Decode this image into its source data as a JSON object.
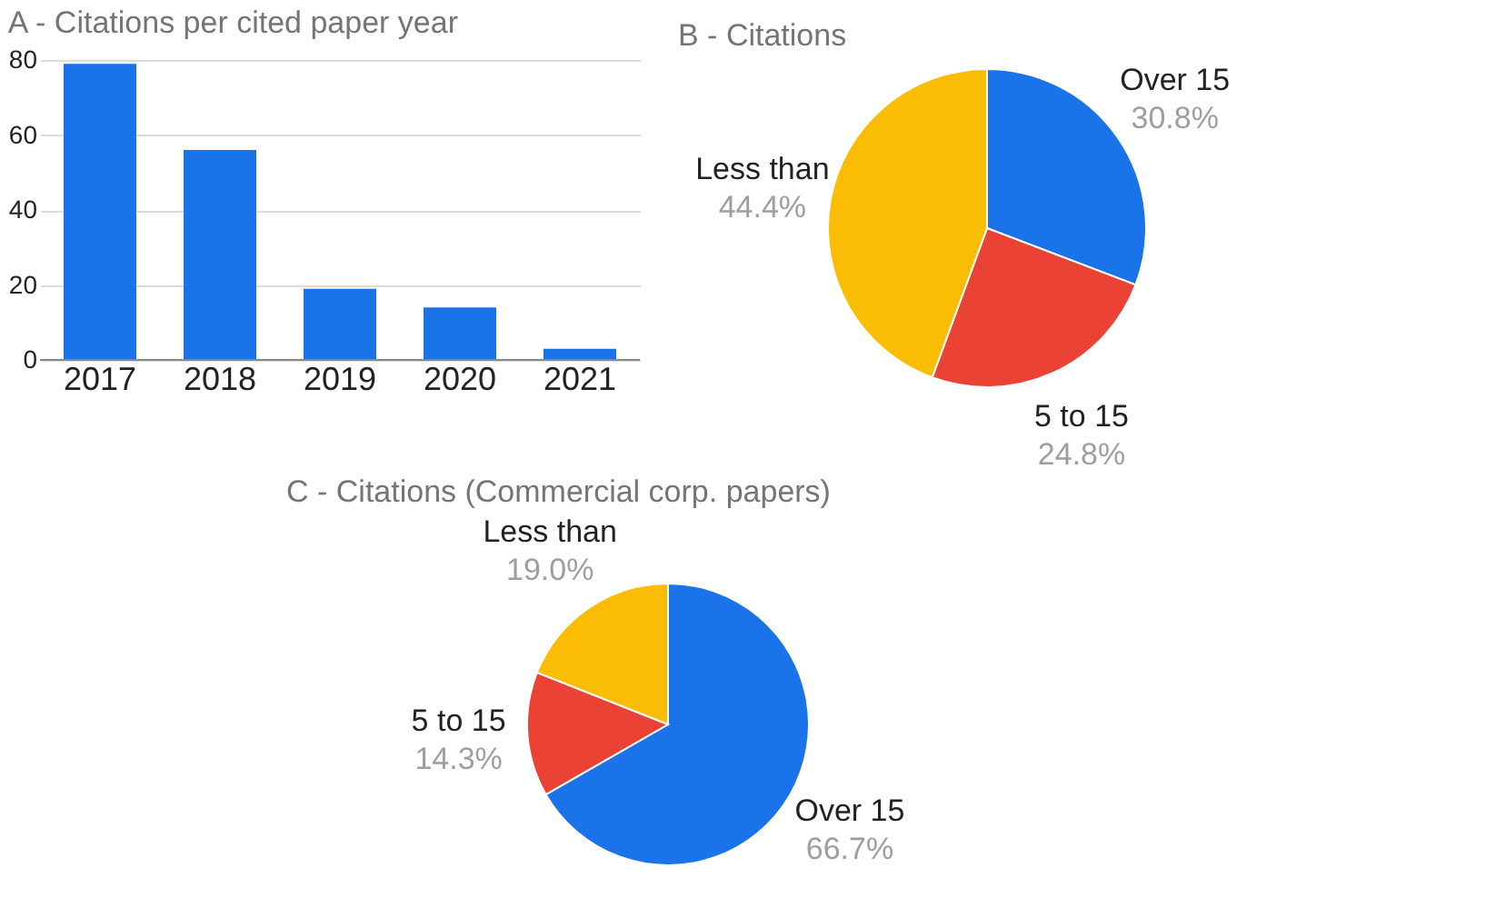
{
  "chart_data": [
    {
      "type": "bar",
      "title": "A - Citations per cited paper year",
      "categories": [
        "2017",
        "2018",
        "2019",
        "2020",
        "2021"
      ],
      "values": [
        79,
        56,
        19,
        14,
        3
      ],
      "color": "#1a73e8",
      "ylim": [
        0,
        80
      ],
      "yticks": [
        0,
        20,
        40,
        60,
        80
      ],
      "grid": "y"
    },
    {
      "type": "pie",
      "title": "B - Citations",
      "categories": [
        "Over 15",
        "5 to 15",
        "Less than"
      ],
      "values": [
        30.8,
        24.8,
        44.4
      ],
      "colors": [
        "#1a73e8",
        "#ea4335",
        "#fbbc04"
      ],
      "value_labels": [
        "30.8%",
        "24.8%",
        "44.4%"
      ]
    },
    {
      "type": "pie",
      "title": "C - Citations (Commercial corp. papers)",
      "categories": [
        "Over 15",
        "5 to 15",
        "Less than"
      ],
      "values": [
        66.7,
        14.3,
        19.0
      ],
      "colors": [
        "#1a73e8",
        "#ea4335",
        "#fbbc04"
      ],
      "value_labels": [
        "66.7%",
        "14.3%",
        "19.0%"
      ]
    }
  ]
}
